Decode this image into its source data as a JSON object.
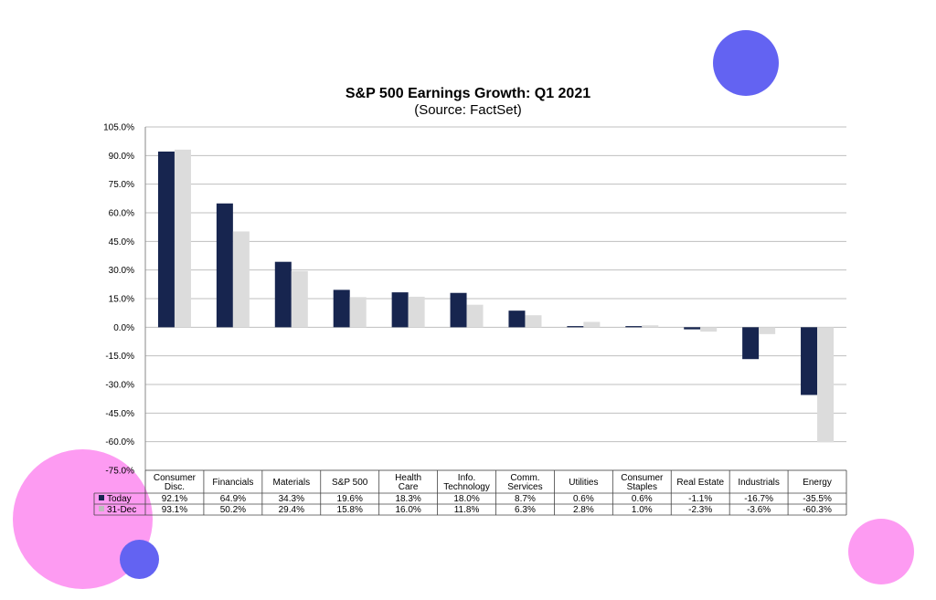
{
  "colors": {
    "today": "#17254f",
    "dec31": "#dcdcdc",
    "grid": "#bfbfbf",
    "decoration_purple": "#6363f2",
    "decoration_pink": "#fd9bf2"
  },
  "chart_data": {
    "type": "bar",
    "title": "S&P 500 Earnings Growth: Q1 2021",
    "subtitle": "(Source: FactSet)",
    "categories": [
      [
        "Consumer",
        "Disc."
      ],
      [
        "Financials"
      ],
      [
        "Materials"
      ],
      [
        "S&P 500"
      ],
      [
        "Health",
        "Care"
      ],
      [
        "Info.",
        "Technology"
      ],
      [
        "Comm.",
        "Services"
      ],
      [
        "Utilities"
      ],
      [
        "Consumer",
        "Staples"
      ],
      [
        "Real Estate"
      ],
      [
        "Industrials"
      ],
      [
        "Energy"
      ]
    ],
    "series": [
      {
        "name": "Today",
        "values": [
          92.1,
          64.9,
          34.3,
          19.6,
          18.3,
          18.0,
          8.7,
          0.6,
          0.6,
          -1.1,
          -16.7,
          -35.5
        ],
        "labels": [
          "92.1%",
          "64.9%",
          "34.3%",
          "19.6%",
          "18.3%",
          "18.0%",
          "8.7%",
          "0.6%",
          "0.6%",
          "-1.1%",
          "-16.7%",
          "-35.5%"
        ]
      },
      {
        "name": "31-Dec",
        "values": [
          93.1,
          50.2,
          29.4,
          15.8,
          16.0,
          11.8,
          6.3,
          2.8,
          1.0,
          -2.3,
          -3.6,
          -60.3
        ],
        "labels": [
          "93.1%",
          "50.2%",
          "29.4%",
          "15.8%",
          "16.0%",
          "11.8%",
          "6.3%",
          "2.8%",
          "1.0%",
          "-2.3%",
          "-3.6%",
          "-60.3%"
        ]
      }
    ],
    "yticks": [
      "105.0%",
      "90.0%",
      "75.0%",
      "60.0%",
      "45.0%",
      "30.0%",
      "15.0%",
      "0.0%",
      "-15.0%",
      "-30.0%",
      "-45.0%",
      "-60.0%",
      "-75.0%"
    ],
    "ylim": [
      -75,
      105
    ],
    "grid": true,
    "legend": "data-table"
  }
}
